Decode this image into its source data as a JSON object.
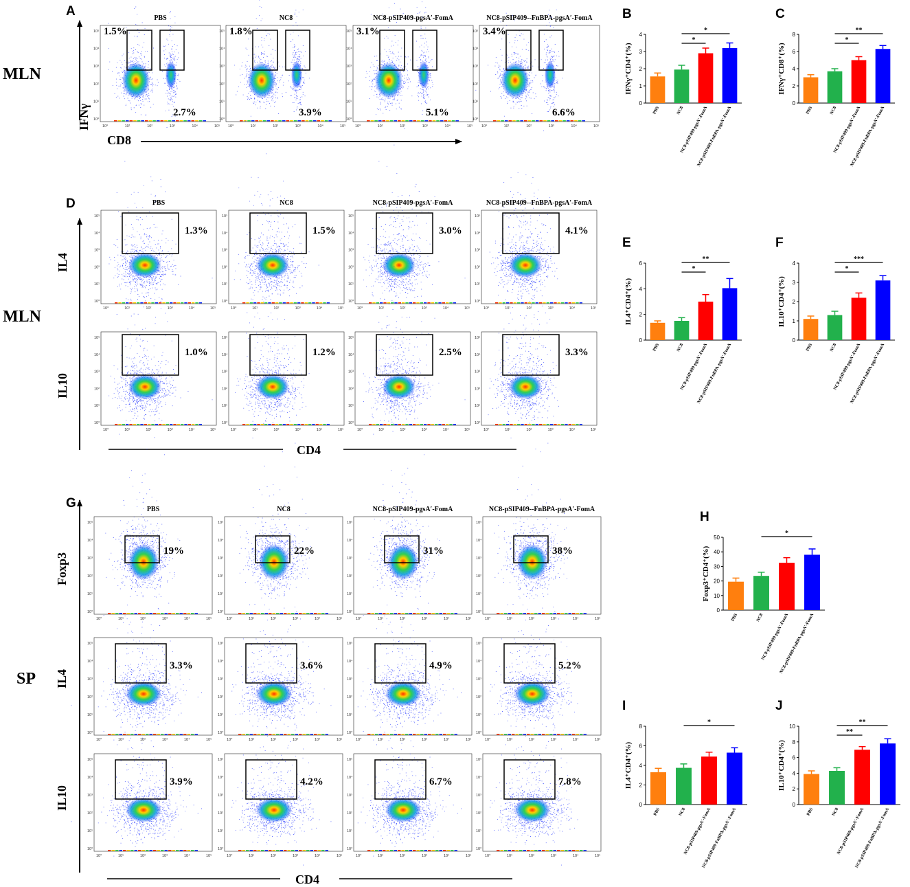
{
  "groups": [
    "PBS",
    "NC8",
    "NC8-pSIP409-pgsA′-FomA",
    "NC8-pSIP409--FnBPA-pgsA′-FomA"
  ],
  "bar_categories": [
    "PBS",
    "NC8",
    "NC8-pSIP409-pgsA′-FomA",
    "NC8-pSIP409-FnBPA-pgsA′-FomA"
  ],
  "bar_colors": [
    "#ff7f0e",
    "#22b14c",
    "#ff0000",
    "#0000ff"
  ],
  "flow_tick_labels": [
    "10⁰",
    "10¹",
    "10²",
    "10³",
    "10⁴",
    "10⁵"
  ],
  "section_A": {
    "letter": "A",
    "tissue": "MLN",
    "y_marker": "IFNγ",
    "x_marker": "CD8",
    "percent_upper": [
      "1.5%",
      "1.8%",
      "3.1%",
      "3.4%"
    ],
    "percent_lower": [
      "2.7%",
      "3.9%",
      "5.1%",
      "6.6%"
    ]
  },
  "section_D": {
    "letter": "D",
    "tissue": "MLN",
    "x_marker": "CD4",
    "row_markers": [
      "IL4",
      "IL10"
    ],
    "percents": [
      [
        "1.3%",
        "1.5%",
        "3.0%",
        "4.1%"
      ],
      [
        "1.0%",
        "1.2%",
        "2.5%",
        "3.3%"
      ]
    ]
  },
  "section_G": {
    "letter": "G",
    "tissue": "SP",
    "x_marker": "CD4",
    "row_markers": [
      "Foxp3",
      "IL4",
      "IL10"
    ],
    "percents": [
      [
        "19%",
        "22%",
        "31%",
        "38%"
      ],
      [
        "3.3%",
        "3.6%",
        "4.9%",
        "5.2%"
      ],
      [
        "3.9%",
        "4.2%",
        "6.7%",
        "7.8%"
      ]
    ]
  },
  "chart_data": [
    {
      "panel": "B",
      "type": "bar",
      "ylabel": "IFNγ⁺CD4⁺(%)",
      "ylim": [
        0,
        4
      ],
      "ticks": [
        0,
        1,
        2,
        3,
        4
      ],
      "values": [
        1.55,
        1.95,
        2.9,
        3.2
      ],
      "errors": [
        0.2,
        0.25,
        0.3,
        0.3
      ],
      "significance": [
        {
          "from": 1,
          "to": 2,
          "label": "*"
        },
        {
          "from": 1,
          "to": 3,
          "label": "*"
        }
      ]
    },
    {
      "panel": "C",
      "type": "bar",
      "ylabel": "IFNγ⁺CD8⁺(%)",
      "ylim": [
        0,
        8
      ],
      "ticks": [
        0,
        2,
        4,
        6,
        8
      ],
      "values": [
        3.0,
        3.7,
        5.0,
        6.3
      ],
      "errors": [
        0.3,
        0.3,
        0.4,
        0.4
      ],
      "significance": [
        {
          "from": 1,
          "to": 2,
          "label": "*"
        },
        {
          "from": 1,
          "to": 3,
          "label": "**"
        }
      ]
    },
    {
      "panel": "E",
      "type": "bar",
      "ylabel": "IL4⁺CD4⁺(%)",
      "ylim": [
        0,
        6
      ],
      "ticks": [
        0,
        2,
        4,
        6
      ],
      "values": [
        1.35,
        1.5,
        3.0,
        4.05
      ],
      "errors": [
        0.15,
        0.25,
        0.55,
        0.75
      ],
      "significance": [
        {
          "from": 1,
          "to": 2,
          "label": "*"
        },
        {
          "from": 1,
          "to": 3,
          "label": "**"
        }
      ]
    },
    {
      "panel": "F",
      "type": "bar",
      "ylabel": "IL10⁺CD4⁺(%)",
      "ylim": [
        0,
        4
      ],
      "ticks": [
        0,
        1,
        2,
        3,
        4
      ],
      "values": [
        1.1,
        1.3,
        2.2,
        3.1
      ],
      "errors": [
        0.15,
        0.2,
        0.25,
        0.25
      ],
      "significance": [
        {
          "from": 1,
          "to": 2,
          "label": "*"
        },
        {
          "from": 1,
          "to": 3,
          "label": "***"
        }
      ]
    },
    {
      "panel": "H",
      "type": "bar",
      "ylabel": "Foxp3⁺CD4⁺(%)",
      "ylim": [
        0,
        50
      ],
      "ticks": [
        0,
        10,
        20,
        30,
        40,
        50
      ],
      "values": [
        19.5,
        23.5,
        32.5,
        38.0
      ],
      "errors": [
        2.5,
        2.5,
        3.5,
        4.0
      ],
      "significance": [
        {
          "from": 1,
          "to": 3,
          "label": "*"
        }
      ]
    },
    {
      "panel": "I",
      "type": "bar",
      "ylabel": "IL4⁺CD4⁺(%)",
      "ylim": [
        0,
        8
      ],
      "ticks": [
        0,
        2,
        4,
        6,
        8
      ],
      "values": [
        3.3,
        3.75,
        4.9,
        5.3
      ],
      "errors": [
        0.4,
        0.4,
        0.45,
        0.5
      ],
      "significance": [
        {
          "from": 1,
          "to": 3,
          "label": "*"
        }
      ]
    },
    {
      "panel": "J",
      "type": "bar",
      "ylabel": "IL10⁺CD4⁺(%)",
      "ylim": [
        0,
        10
      ],
      "ticks": [
        0,
        2,
        4,
        6,
        8,
        10
      ],
      "values": [
        3.9,
        4.3,
        7.0,
        7.8
      ],
      "errors": [
        0.4,
        0.4,
        0.4,
        0.6
      ],
      "significance": [
        {
          "from": 1,
          "to": 2,
          "label": "**"
        },
        {
          "from": 1,
          "to": 3,
          "label": "**"
        }
      ]
    }
  ]
}
